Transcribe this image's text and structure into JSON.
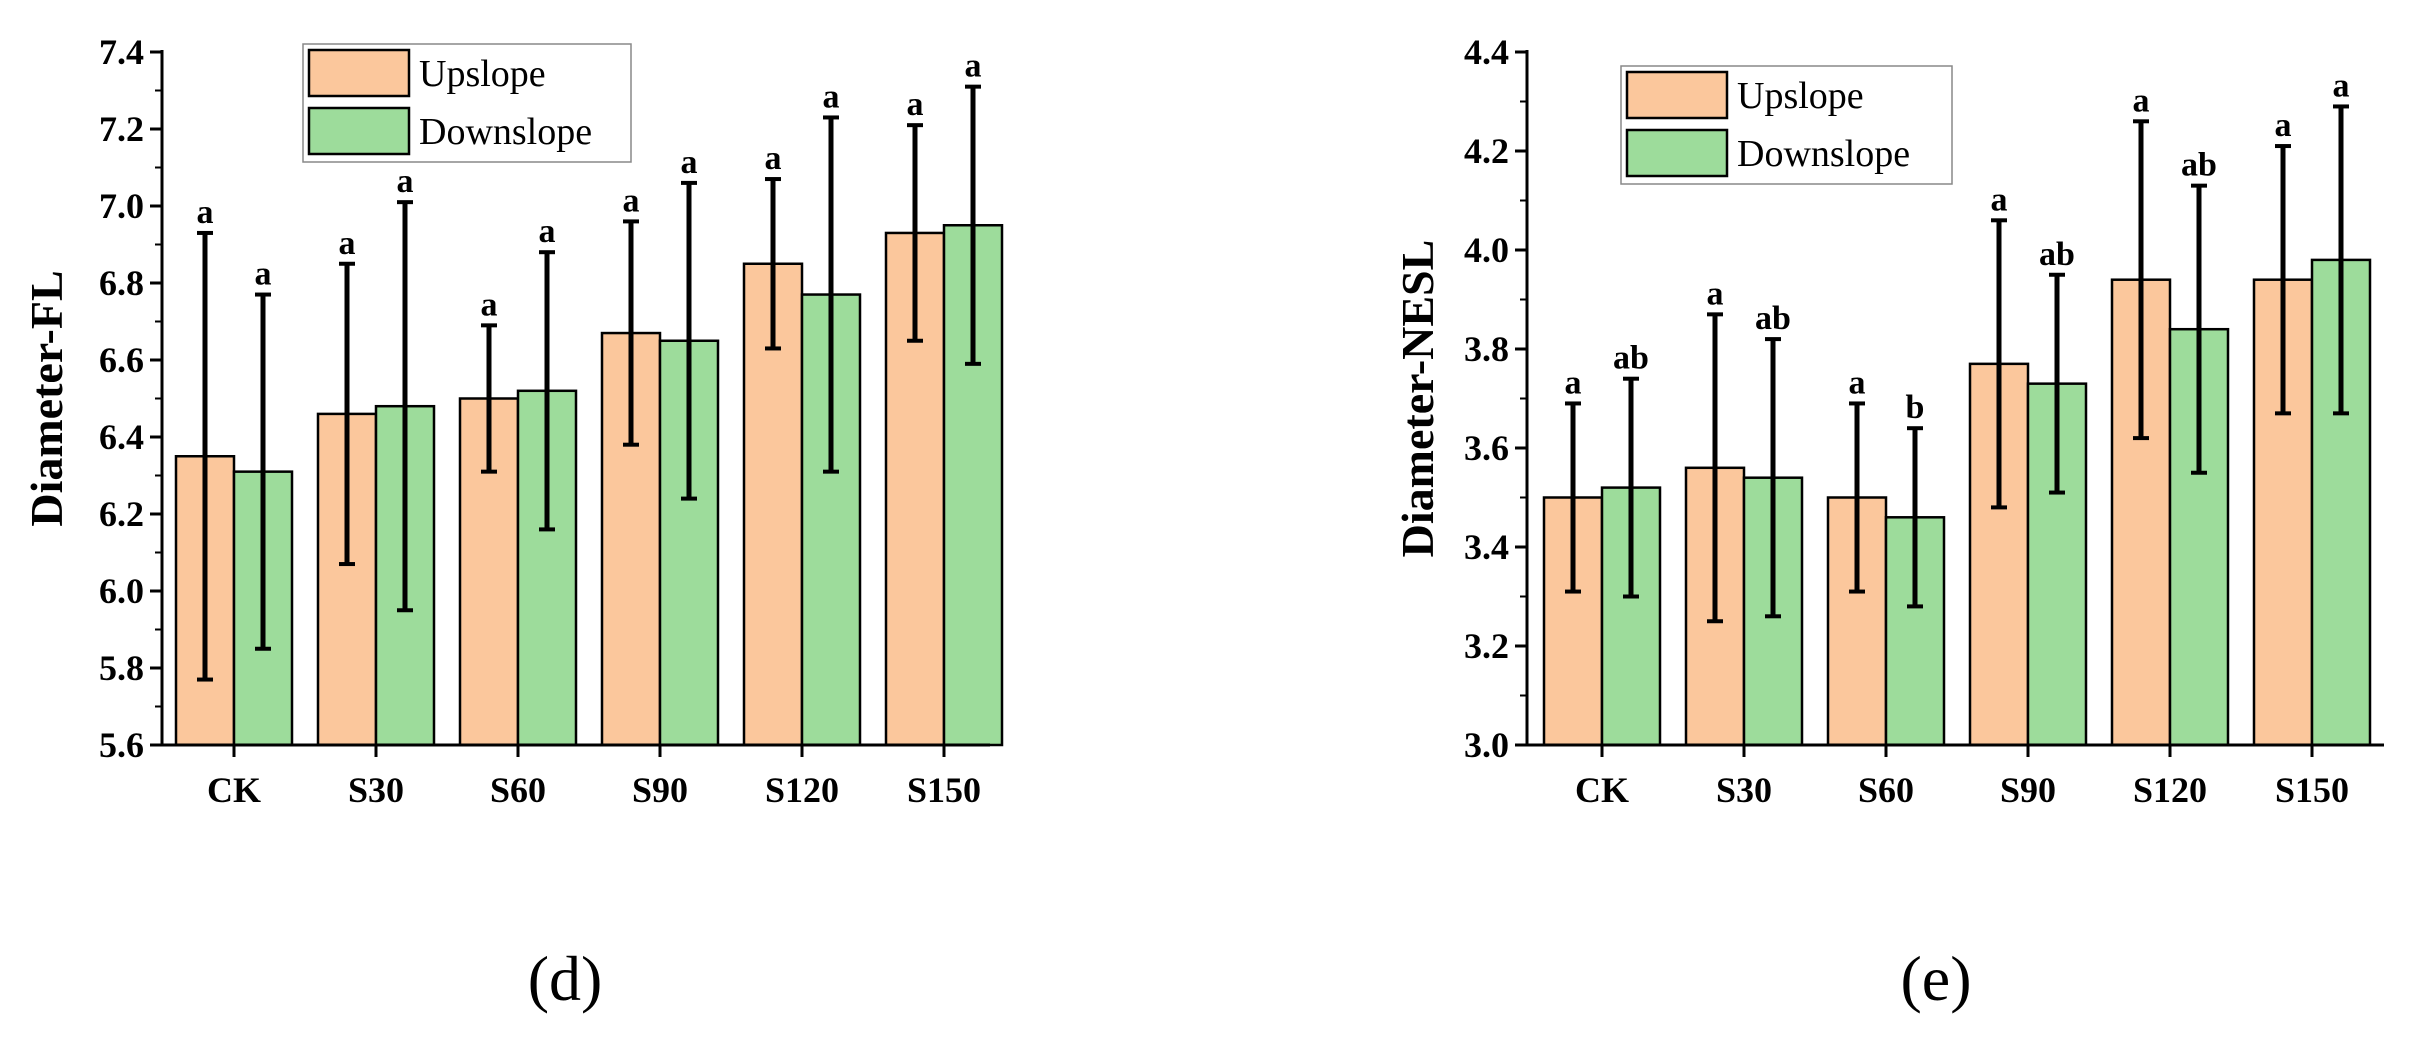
{
  "colors": {
    "up": "#fbc79c",
    "down": "#9ddc9b"
  },
  "chart_data": [
    {
      "type": "bar",
      "panel_label": "(d)",
      "ylabel": "Diameter-FL",
      "categories": [
        "CK",
        "S30",
        "S60",
        "S90",
        "S120",
        "S150"
      ],
      "ylim": [
        5.6,
        7.4
      ],
      "yticks": [
        5.6,
        5.8,
        6.0,
        6.2,
        6.4,
        6.6,
        6.8,
        7.0,
        7.2,
        7.4
      ],
      "ytick_labels": [
        "5.6",
        "5.8",
        "6.0",
        "6.2",
        "6.4",
        "6.6",
        "6.8",
        "7.0",
        "7.2",
        "7.4"
      ],
      "legend": [
        "Upslope",
        "Downslope"
      ],
      "legend_position": "top-left",
      "series": [
        {
          "name": "Upslope",
          "values": [
            6.35,
            6.46,
            6.5,
            6.67,
            6.85,
            6.93
          ],
          "err_low": [
            5.77,
            6.07,
            6.31,
            6.38,
            6.63,
            6.65
          ],
          "err_high": [
            6.93,
            6.85,
            6.69,
            6.96,
            7.07,
            7.21
          ],
          "letters": [
            "a",
            "a",
            "a",
            "a",
            "a",
            "a"
          ]
        },
        {
          "name": "Downslope",
          "values": [
            6.31,
            6.48,
            6.52,
            6.65,
            6.77,
            6.95
          ],
          "err_low": [
            5.85,
            5.95,
            6.16,
            6.24,
            6.31,
            6.59
          ],
          "err_high": [
            6.77,
            7.01,
            6.88,
            7.06,
            7.23,
            7.31
          ],
          "letters": [
            "a",
            "a",
            "a",
            "a",
            "a",
            "a"
          ]
        }
      ]
    },
    {
      "type": "bar",
      "panel_label": "(e)",
      "ylabel": "Diameter-NESL",
      "categories": [
        "CK",
        "S30",
        "S60",
        "S90",
        "S120",
        "S150"
      ],
      "ylim": [
        3.0,
        4.4
      ],
      "yticks": [
        3.0,
        3.2,
        3.4,
        3.6,
        3.8,
        4.0,
        4.2,
        4.4
      ],
      "ytick_labels": [
        "3.0",
        "3.2",
        "3.4",
        "3.6",
        "3.8",
        "4.0",
        "4.2",
        "4.4"
      ],
      "legend": [
        "Upslope",
        "Downslope"
      ],
      "legend_position": "top-left",
      "series": [
        {
          "name": "Upslope",
          "values": [
            3.5,
            3.56,
            3.5,
            3.77,
            3.94,
            3.94
          ],
          "err_low": [
            3.31,
            3.25,
            3.31,
            3.48,
            3.62,
            3.67
          ],
          "err_high": [
            3.69,
            3.87,
            3.69,
            4.06,
            4.26,
            4.21
          ],
          "letters": [
            "a",
            "a",
            "a",
            "a",
            "a",
            "a"
          ]
        },
        {
          "name": "Downslope",
          "values": [
            3.52,
            3.54,
            3.46,
            3.73,
            3.84,
            3.98
          ],
          "err_low": [
            3.3,
            3.26,
            3.28,
            3.51,
            3.55,
            3.67
          ],
          "err_high": [
            3.74,
            3.82,
            3.64,
            3.95,
            4.13,
            4.29
          ],
          "letters": [
            "ab",
            "ab",
            "b",
            "ab",
            "ab",
            "a"
          ]
        }
      ]
    }
  ]
}
